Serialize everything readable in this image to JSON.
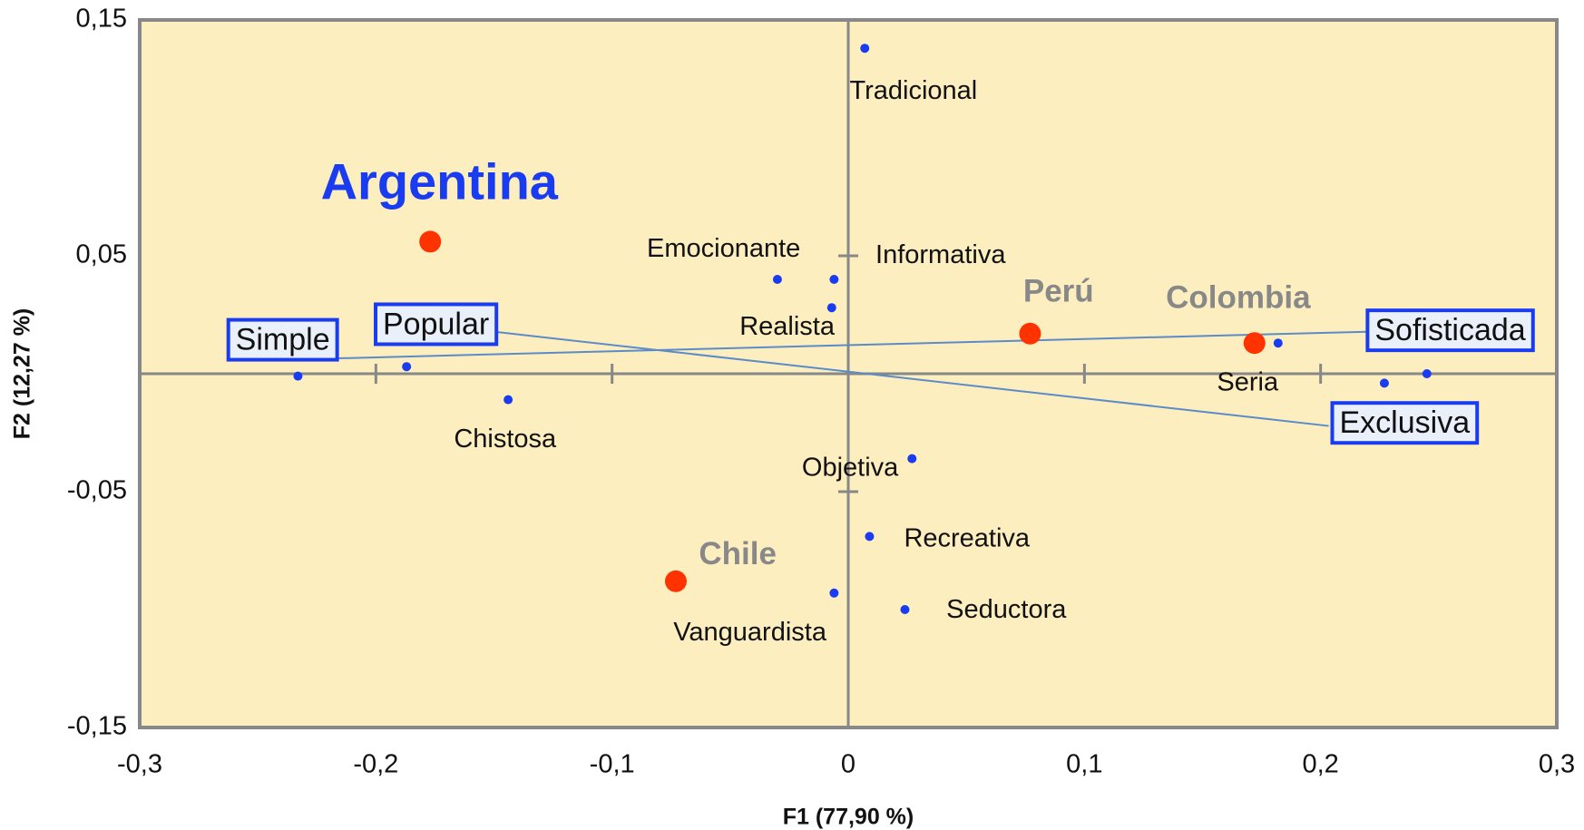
{
  "chart_data": {
    "type": "scatter",
    "xlabel": "F1 (77,90 %)",
    "ylabel": "F2 (12,27 %)",
    "xlim": [
      -0.3,
      0.3
    ],
    "ylim": [
      -0.15,
      0.15
    ],
    "xticks": [
      {
        "value": -0.3,
        "label": "-0,3"
      },
      {
        "value": -0.2,
        "label": "-0,2"
      },
      {
        "value": -0.1,
        "label": "-0,1"
      },
      0,
      {
        "value": 0.1,
        "label": "0,1"
      },
      {
        "value": 0.2,
        "label": "0,2"
      },
      {
        "value": 0.3,
        "label": "0,3"
      }
    ],
    "yticks": [
      {
        "value": -0.15,
        "label": "-0,15"
      },
      {
        "value": -0.05,
        "label": "-0,05"
      },
      {
        "value": 0.05,
        "label": "0,05"
      },
      {
        "value": 0.15,
        "label": "0,15"
      }
    ],
    "background": "#fdeec0",
    "series": [
      {
        "color": "#ff3300",
        "labels": [
          "Argentina",
          "Perú",
          "Colombia",
          "Chile"
        ],
        "x": [
          -0.177,
          0.077,
          0.172,
          -0.073
        ],
        "y": [
          0.056,
          0.017,
          0.013,
          -0.088
        ]
      },
      {
        "color": "#1a3cf0",
        "labels": [
          "Tradicional",
          "Emocionante",
          "Informativa",
          "Realista",
          "Simple",
          "Popular",
          "Chistosa",
          "Sofisticada",
          "Exclusiva",
          "Seria",
          "Objetiva",
          "Recreativa",
          "Seductora",
          "Vanguardista"
        ],
        "x": [
          0.007,
          -0.03,
          -0.006,
          -0.007,
          -0.233,
          -0.187,
          -0.144,
          0.245,
          0.227,
          0.182,
          0.027,
          0.009,
          0.024,
          -0.006
        ],
        "y": [
          0.138,
          0.04,
          0.04,
          0.028,
          -0.001,
          0.003,
          -0.011,
          0.0,
          -0.004,
          0.013,
          -0.036,
          -0.069,
          -0.1,
          -0.093
        ]
      }
    ]
  }
}
